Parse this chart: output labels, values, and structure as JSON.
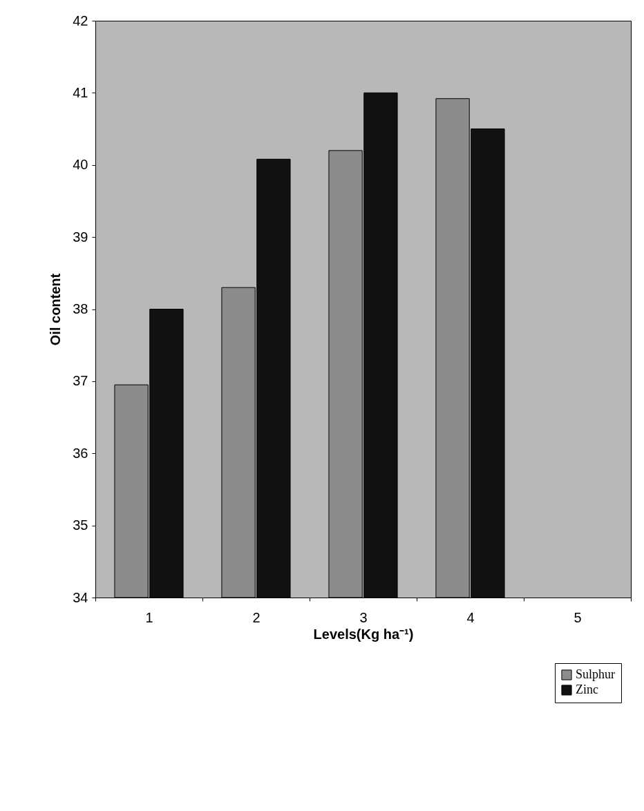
{
  "chart_data": {
    "type": "bar",
    "xlabel": "Levels(Kg ha⁻¹)",
    "ylabel": "Oil content",
    "categories": [
      "1",
      "2",
      "3",
      "4",
      "5"
    ],
    "series": [
      {
        "name": "Sulphur",
        "color": "#8c8c8c",
        "values": [
          36.95,
          38.3,
          40.2,
          40.92,
          null
        ]
      },
      {
        "name": "Zinc",
        "color": "#111111",
        "values": [
          38.0,
          40.08,
          41.0,
          40.5,
          null
        ]
      }
    ],
    "ylim": [
      34,
      42
    ],
    "yticks": [
      34,
      35,
      36,
      37,
      38,
      39,
      40,
      41,
      42
    ],
    "grid": false,
    "legend": "bottom right"
  }
}
